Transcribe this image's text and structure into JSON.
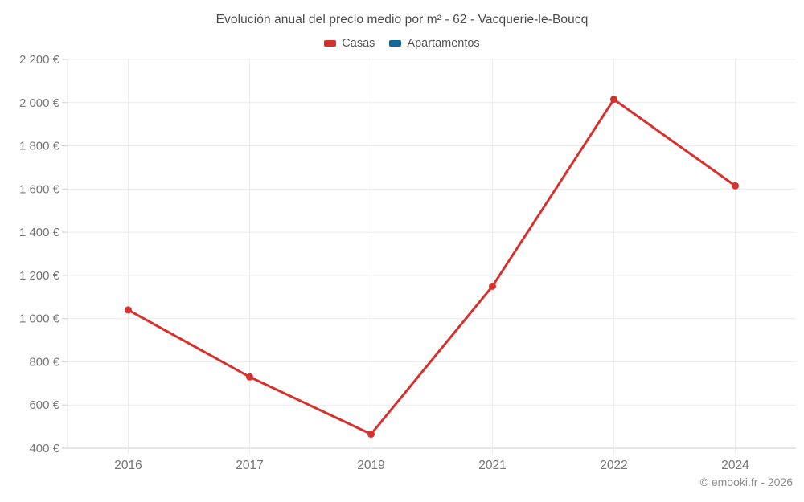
{
  "chart_data": {
    "type": "line",
    "title": "Evolución anual del precio medio por m² - 62 - Vacquerie-le-Boucq",
    "categories": [
      "2016",
      "2017",
      "2019",
      "2021",
      "2022",
      "2024"
    ],
    "series": [
      {
        "name": "Casas",
        "color": "#d5312e",
        "values": [
          1040,
          730,
          465,
          1150,
          2015,
          1615
        ]
      },
      {
        "name": "Apartamentos",
        "color": "#15689c",
        "values": []
      }
    ],
    "ylim": [
      400,
      2200
    ],
    "ytick_step": 200,
    "ytick_labels": [
      "400 €",
      "600 €",
      "800 €",
      "1 000 €",
      "1 200 €",
      "1 400 €",
      "1 600 €",
      "1 800 €",
      "2 000 €",
      "2 200 €"
    ],
    "grid": true,
    "legend_position": "top",
    "footer": "© emooki.fr - 2026",
    "colors": {
      "grid_line": "#ececec",
      "axis_line": "#cfcfcf",
      "tick_label": "#757575",
      "title_text": "#4c4c4c",
      "footer_text": "#8c8c8c"
    }
  }
}
